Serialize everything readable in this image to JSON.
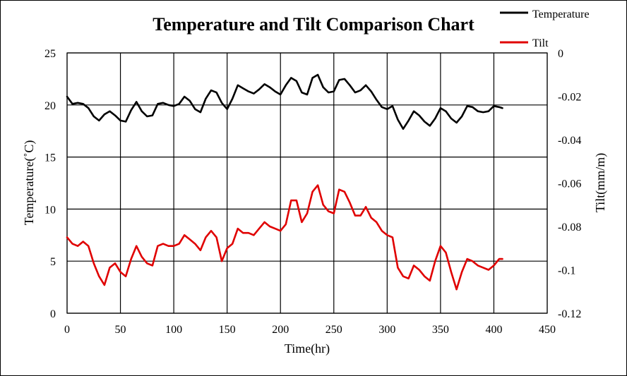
{
  "chart_data": {
    "type": "line",
    "title": "Temperature and Tilt Comparison Chart",
    "xlabel": "Time(hr)",
    "ylabel_left": "Temperature(˚C)",
    "ylabel_right": "Tilt(mm/m)",
    "xlim": [
      0,
      450
    ],
    "ylim_left": [
      0,
      25
    ],
    "ylim_right": [
      -0.12,
      0
    ],
    "x_ticks": [
      "0",
      "50",
      "100",
      "150",
      "200",
      "250",
      "300",
      "350",
      "400",
      "450"
    ],
    "y_left_ticks": [
      "0",
      "5",
      "10",
      "15",
      "20",
      "25"
    ],
    "y_right_ticks": [
      "0",
      "-0.02",
      "-0.04",
      "-0.06",
      "-0.08",
      "-0.1",
      "-0.12"
    ],
    "grid": true,
    "legend_position": "top-right",
    "series": [
      {
        "name": "Temperature",
        "axis": "left",
        "color": "#000000",
        "x": [
          0,
          5,
          10,
          15,
          20,
          25,
          30,
          35,
          40,
          45,
          50,
          55,
          60,
          65,
          70,
          75,
          80,
          85,
          90,
          95,
          100,
          105,
          110,
          115,
          120,
          125,
          130,
          135,
          140,
          145,
          150,
          155,
          160,
          165,
          170,
          175,
          180,
          185,
          190,
          195,
          200,
          205,
          210,
          215,
          220,
          225,
          230,
          235,
          240,
          245,
          250,
          255,
          260,
          265,
          270,
          275,
          280,
          285,
          290,
          295,
          300,
          305,
          310,
          315,
          320,
          325,
          330,
          335,
          340,
          345,
          350,
          355,
          360,
          365,
          370,
          375,
          380,
          385,
          390,
          395,
          400,
          405,
          408
        ],
        "values": [
          20.8,
          20.1,
          20.2,
          20.1,
          19.7,
          18.9,
          18.5,
          19.1,
          19.4,
          19.0,
          18.5,
          18.4,
          19.5,
          20.3,
          19.4,
          18.9,
          19.0,
          20.1,
          20.2,
          20.0,
          19.9,
          20.1,
          20.8,
          20.4,
          19.6,
          19.3,
          20.6,
          21.4,
          21.2,
          20.2,
          19.6,
          20.6,
          21.9,
          21.6,
          21.3,
          21.1,
          21.5,
          22.0,
          21.7,
          21.3,
          21.0,
          21.9,
          22.6,
          22.3,
          21.2,
          21.0,
          22.6,
          22.9,
          21.7,
          21.2,
          21.3,
          22.4,
          22.5,
          21.9,
          21.2,
          21.4,
          21.9,
          21.3,
          20.5,
          19.8,
          19.6,
          19.9,
          18.6,
          17.7,
          18.5,
          19.4,
          19.0,
          18.4,
          18.0,
          18.7,
          19.7,
          19.4,
          18.7,
          18.3,
          18.9,
          19.9,
          19.8,
          19.4,
          19.3,
          19.4,
          19.9,
          19.8,
          19.7
        ]
      },
      {
        "name": "Tilt",
        "axis": "right",
        "color": "#e00000",
        "x": [
          0,
          5,
          10,
          15,
          20,
          25,
          30,
          35,
          40,
          45,
          50,
          55,
          60,
          65,
          70,
          75,
          80,
          85,
          90,
          95,
          100,
          105,
          110,
          115,
          120,
          125,
          130,
          135,
          140,
          145,
          150,
          155,
          160,
          165,
          170,
          175,
          180,
          185,
          190,
          195,
          200,
          205,
          210,
          215,
          220,
          225,
          230,
          235,
          240,
          245,
          250,
          255,
          260,
          265,
          270,
          275,
          280,
          285,
          290,
          295,
          300,
          305,
          310,
          315,
          320,
          325,
          330,
          335,
          340,
          345,
          350,
          355,
          360,
          365,
          370,
          375,
          380,
          385,
          390,
          395,
          400,
          405,
          408
        ],
        "values": [
          -0.085,
          -0.088,
          -0.089,
          -0.087,
          -0.089,
          -0.097,
          -0.103,
          -0.107,
          -0.099,
          -0.097,
          -0.101,
          -0.103,
          -0.095,
          -0.089,
          -0.094,
          -0.097,
          -0.098,
          -0.089,
          -0.088,
          -0.089,
          -0.089,
          -0.088,
          -0.084,
          -0.086,
          -0.088,
          -0.091,
          -0.085,
          -0.082,
          -0.085,
          -0.096,
          -0.09,
          -0.088,
          -0.081,
          -0.083,
          -0.083,
          -0.084,
          -0.081,
          -0.078,
          -0.08,
          -0.081,
          -0.082,
          -0.079,
          -0.068,
          -0.068,
          -0.078,
          -0.074,
          -0.064,
          -0.061,
          -0.07,
          -0.073,
          -0.074,
          -0.063,
          -0.064,
          -0.069,
          -0.075,
          -0.075,
          -0.071,
          -0.076,
          -0.078,
          -0.082,
          -0.084,
          -0.085,
          -0.099,
          -0.103,
          -0.104,
          -0.098,
          -0.1,
          -0.103,
          -0.105,
          -0.096,
          -0.089,
          -0.092,
          -0.101,
          -0.109,
          -0.101,
          -0.095,
          -0.096,
          -0.098,
          -0.099,
          -0.1,
          -0.098,
          -0.095,
          -0.095
        ]
      }
    ]
  }
}
